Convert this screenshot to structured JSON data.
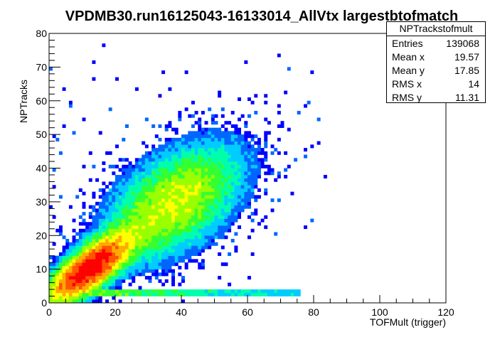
{
  "chart_data": {
    "type": "heatmap",
    "title": "VPDMB30.run16125043-16133014_AllVtx largestbtofmatch",
    "xlabel": "TOFMult (trigger)",
    "ylabel": "NPTracks",
    "xlim": [
      0,
      120
    ],
    "ylim": [
      0,
      80
    ],
    "x_ticks": [
      "0",
      "20",
      "40",
      "60",
      "80",
      "100",
      "120"
    ],
    "y_ticks": [
      "0",
      "10",
      "20",
      "30",
      "40",
      "50",
      "60",
      "70",
      "80"
    ],
    "bin_width_x": 1,
    "bin_width_y": 1,
    "colormap": [
      "#0000ff",
      "#0066ff",
      "#00ccff",
      "#00ffaa",
      "#33ff33",
      "#99ff00",
      "#ffff00",
      "#ffaa00",
      "#ff5500",
      "#ff0000"
    ],
    "density_model": {
      "components": [
        {
          "center_x": 12,
          "center_y": 10,
          "sigma_along": 9,
          "sigma_across": 3.4,
          "slope": 0.75,
          "weight": 1.0
        },
        {
          "center_x": 38,
          "center_y": 30,
          "sigma_along": 14,
          "sigma_across": 8,
          "slope": 0.7,
          "weight": 0.35
        }
      ],
      "low_band": {
        "y_min": 2,
        "y_max": 3.6,
        "x_max": 76,
        "weight": 0.3
      },
      "sparse_region_x_max": 110,
      "sparse_region_y_max": 78
    },
    "grid": false,
    "legend": "none"
  },
  "stats": {
    "name": "NPTrackstofmult",
    "rows": [
      {
        "label": "Entries",
        "value": "139068"
      },
      {
        "label": "Mean x",
        "value": "19.57"
      },
      {
        "label": "Mean y",
        "value": "17.85"
      },
      {
        "label": "RMS x",
        "value": "14"
      },
      {
        "label": "RMS y",
        "value": "11.31"
      }
    ]
  }
}
